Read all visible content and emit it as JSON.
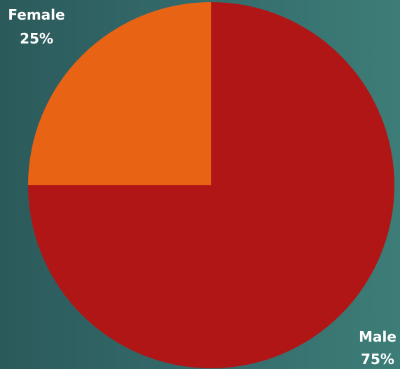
{
  "chart_data": {
    "type": "pie",
    "categories": [
      "Female",
      "Male"
    ],
    "values": [
      25,
      75
    ],
    "value_labels": [
      "25%",
      "75%"
    ],
    "colors": [
      "#e86414",
      "#b01616"
    ],
    "start": "12 o'clock, clockwise: Male then Female"
  }
}
